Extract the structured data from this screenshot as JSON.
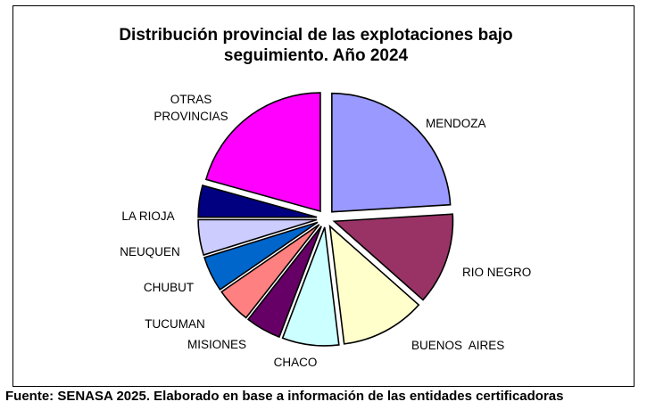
{
  "chart_data": {
    "type": "pie",
    "title_lines": [
      "Distribución provincial de las explotaciones bajo",
      "seguimiento. Año 2024"
    ],
    "slices": [
      {
        "label": "MENDOZA",
        "value": 25,
        "color": "#9999ff",
        "exploded": true
      },
      {
        "label": "RIO NEGRO",
        "value": 13,
        "color": "#993366",
        "exploded": true
      },
      {
        "label": "BUENOS  AIRES",
        "value": 12,
        "color": "#ffffcc",
        "exploded": true
      },
      {
        "label": "CHACO",
        "value": 8,
        "color": "#ccffff",
        "exploded": true
      },
      {
        "label": "MISIONES",
        "value": 5,
        "color": "#660066",
        "exploded": true
      },
      {
        "label": "TUCUMAN",
        "value": 5,
        "color": "#ff8080",
        "exploded": true
      },
      {
        "label": "CHUBUT",
        "value": 5,
        "color": "#0066cc",
        "exploded": true
      },
      {
        "label": "NEUQUEN",
        "value": 5,
        "color": "#ccccff",
        "exploded": true
      },
      {
        "label": "LA RIOJA",
        "value": 4.5,
        "color": "#000080",
        "exploded": true
      },
      {
        "label": "OTRAS\nPROVINCIAS",
        "value": 21.5,
        "color": "#ff00ff",
        "exploded": true
      }
    ],
    "start_angle_deg": 0,
    "direction": "clockwise",
    "legend": "none"
  },
  "source": "Fuente: SENASA 2025. Elaborado en base a información de las entidades certificadoras"
}
